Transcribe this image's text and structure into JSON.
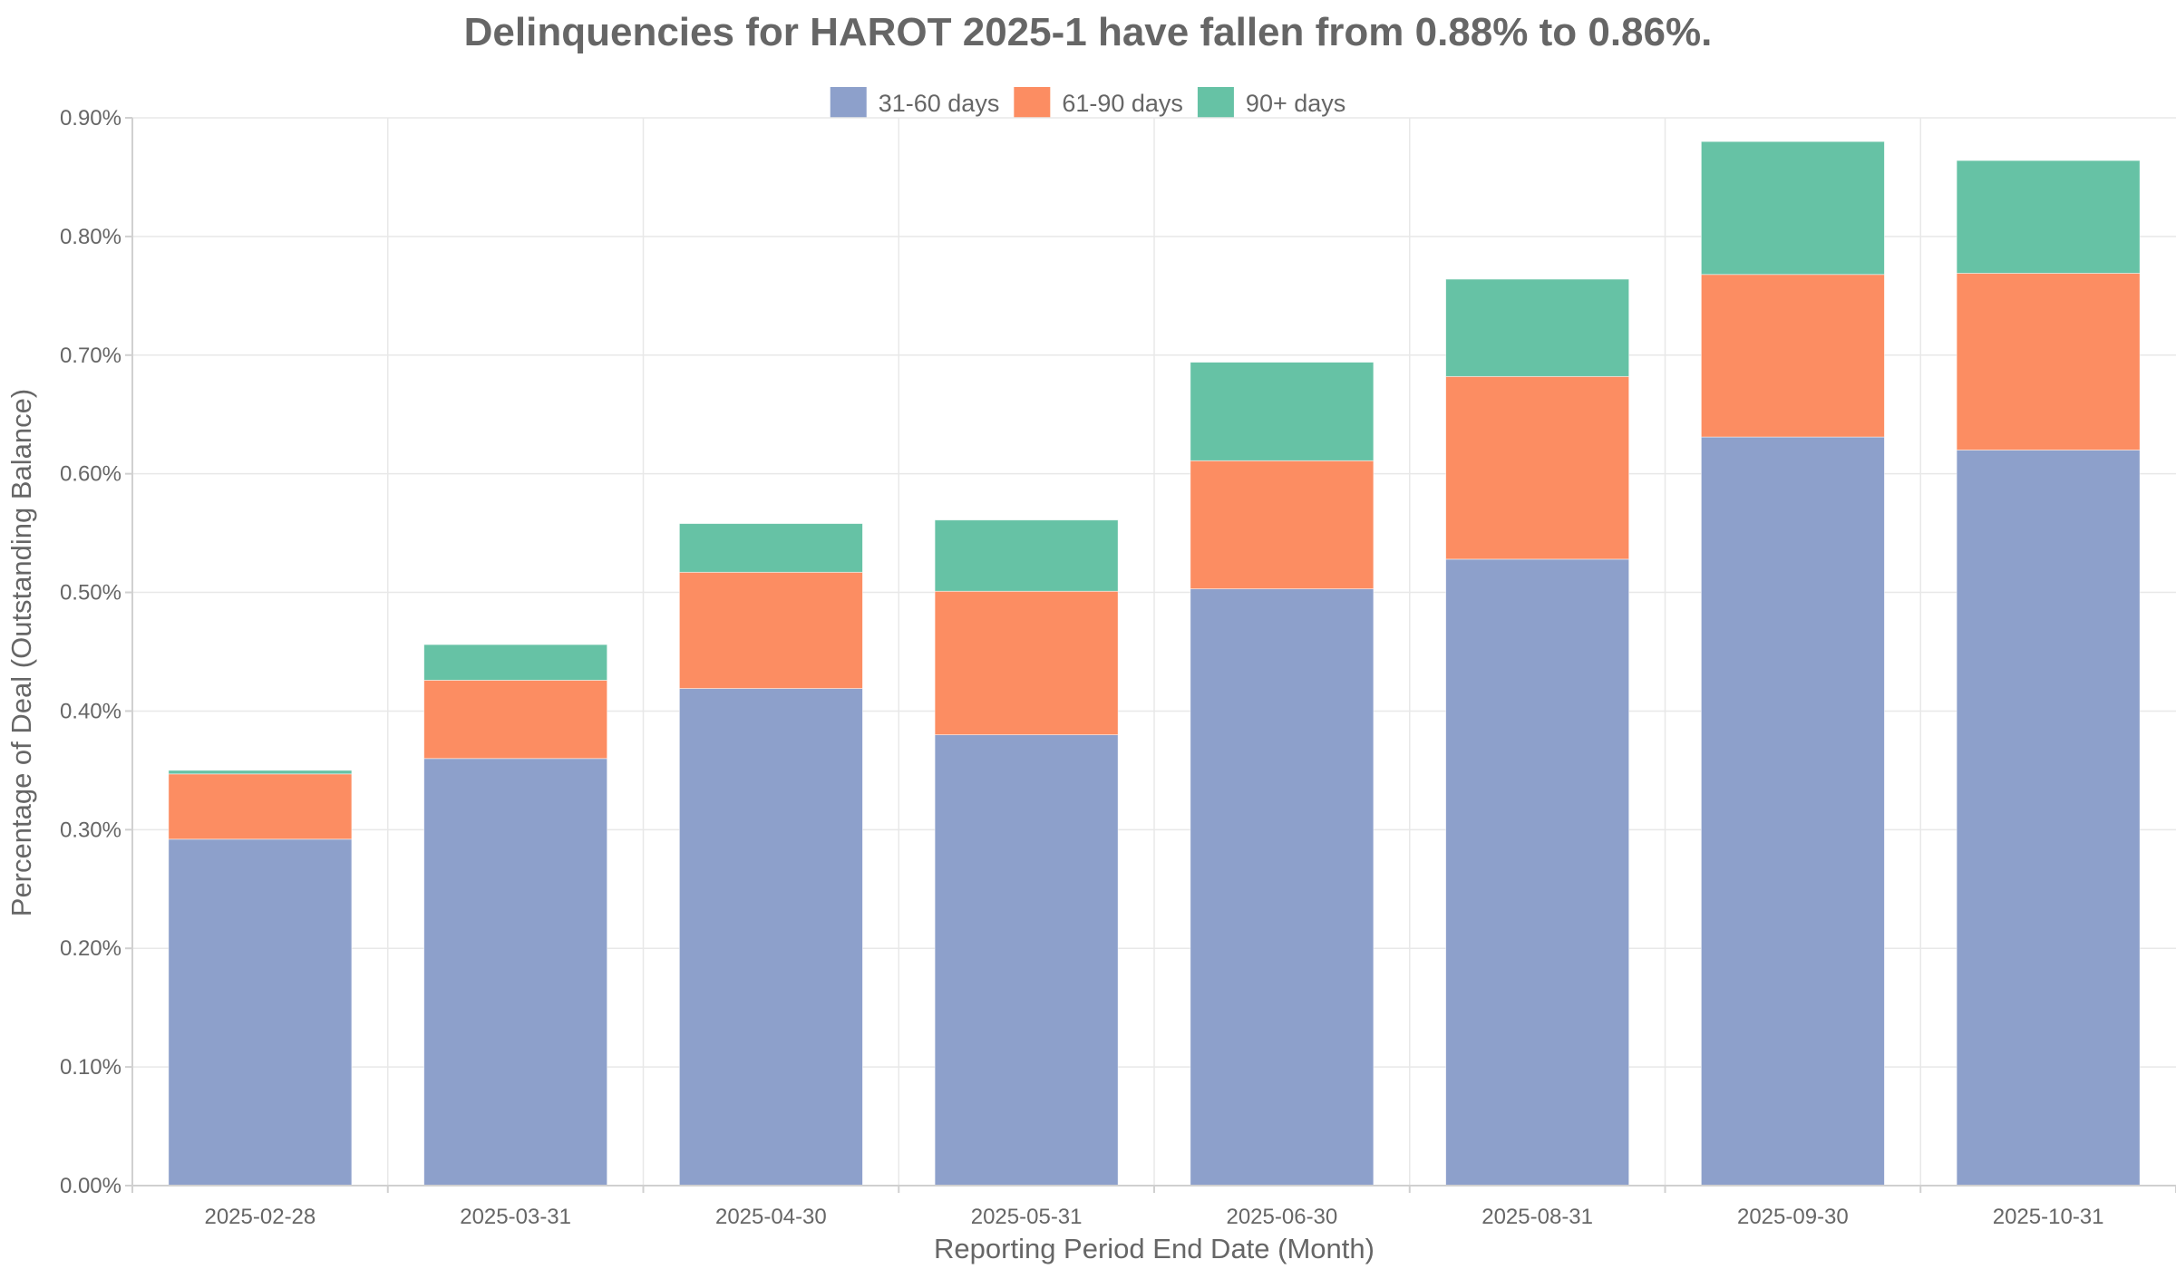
{
  "chart_data": {
    "type": "bar",
    "stacked": true,
    "title": "Delinquencies for HAROT 2025-1 have fallen from 0.88% to 0.86%.",
    "xlabel": "Reporting Period End Date (Month)",
    "ylabel": "Percentage of Deal (Outstanding Balance)",
    "ylim": [
      0,
      0.9
    ],
    "yticks": [
      0,
      0.1,
      0.2,
      0.3,
      0.4,
      0.5,
      0.6,
      0.7,
      0.8,
      0.9
    ],
    "ytick_labels": [
      "0.00%",
      "0.10%",
      "0.20%",
      "0.30%",
      "0.40%",
      "0.50%",
      "0.60%",
      "0.70%",
      "0.80%",
      "0.90%"
    ],
    "grid": true,
    "legend_position": "top-center",
    "categories": [
      "2025-02-28",
      "2025-03-31",
      "2025-04-30",
      "2025-05-31",
      "2025-06-30",
      "2025-08-31",
      "2025-09-30",
      "2025-10-31"
    ],
    "series": [
      {
        "name": "31-60 days",
        "color": "#8da0cb",
        "values": [
          0.292,
          0.36,
          0.419,
          0.38,
          0.503,
          0.528,
          0.631,
          0.62
        ]
      },
      {
        "name": "61-90 days",
        "color": "#fc8d62",
        "values": [
          0.055,
          0.066,
          0.098,
          0.121,
          0.108,
          0.154,
          0.137,
          0.149
        ]
      },
      {
        "name": "90+ days",
        "color": "#66c2a5",
        "values": [
          0.003,
          0.03,
          0.041,
          0.06,
          0.083,
          0.082,
          0.112,
          0.095
        ]
      }
    ]
  }
}
